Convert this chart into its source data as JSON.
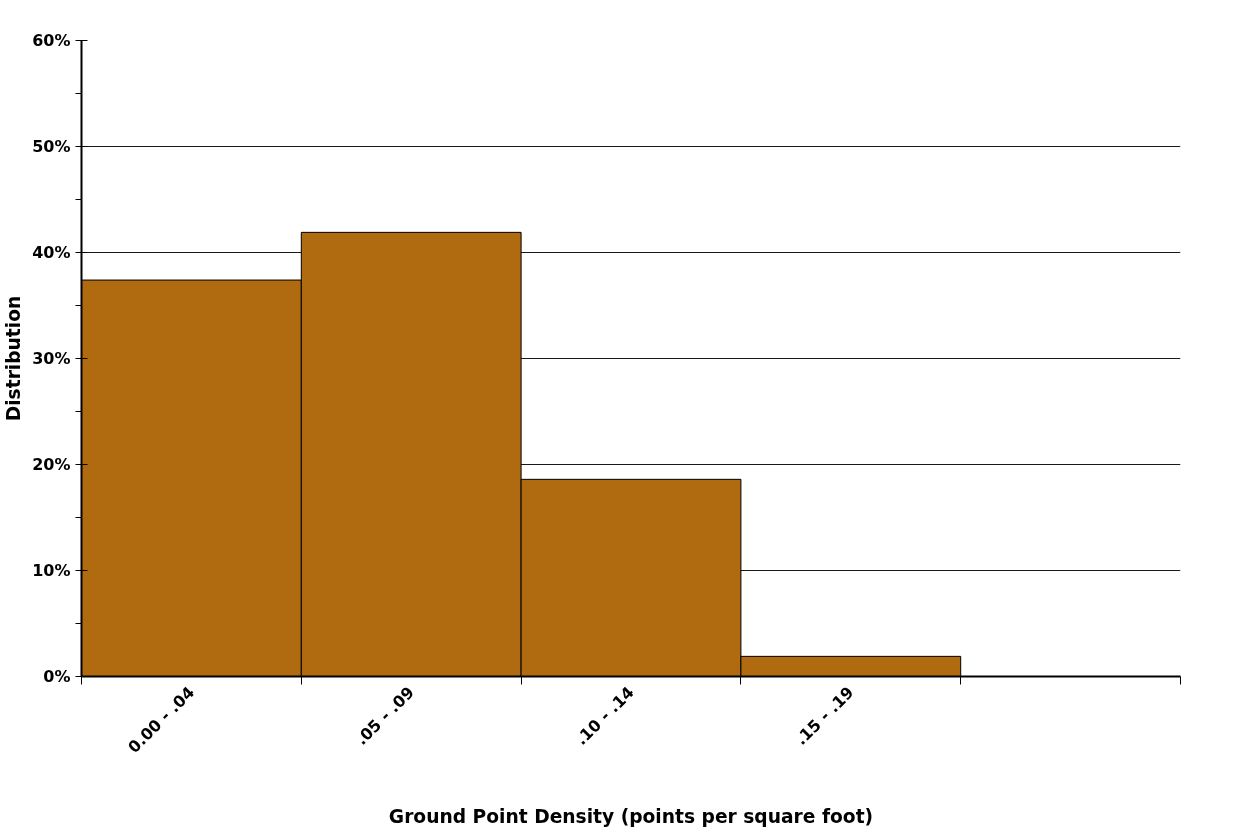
{
  "chart_data": {
    "type": "bar",
    "xlabel": "Ground Point Density (points per square foot)",
    "ylabel": "Distribution",
    "categories": [
      "0.00 - .04",
      ".05 - .09",
      ".10 - .14",
      ".15 - .19",
      null
    ],
    "values": [
      37.4,
      41.9,
      18.6,
      1.9,
      null
    ],
    "color": "#b06a10",
    "ylim": [
      0,
      60
    ],
    "yticks": [
      {
        "value": 0,
        "label": "0%"
      },
      {
        "value": 5,
        "label": null
      },
      {
        "value": 10,
        "label": "10%"
      },
      {
        "value": 15,
        "label": null
      },
      {
        "value": 20,
        "label": "20%"
      },
      {
        "value": 25,
        "label": null
      },
      {
        "value": 30,
        "label": "30%"
      },
      {
        "value": 35,
        "label": null
      },
      {
        "value": 40,
        "label": "40%"
      },
      {
        "value": 45,
        "label": null
      },
      {
        "value": 50,
        "label": "50%"
      },
      {
        "value": 55,
        "label": null
      },
      {
        "value": 60,
        "label": "60%"
      }
    ],
    "grid": "y"
  }
}
